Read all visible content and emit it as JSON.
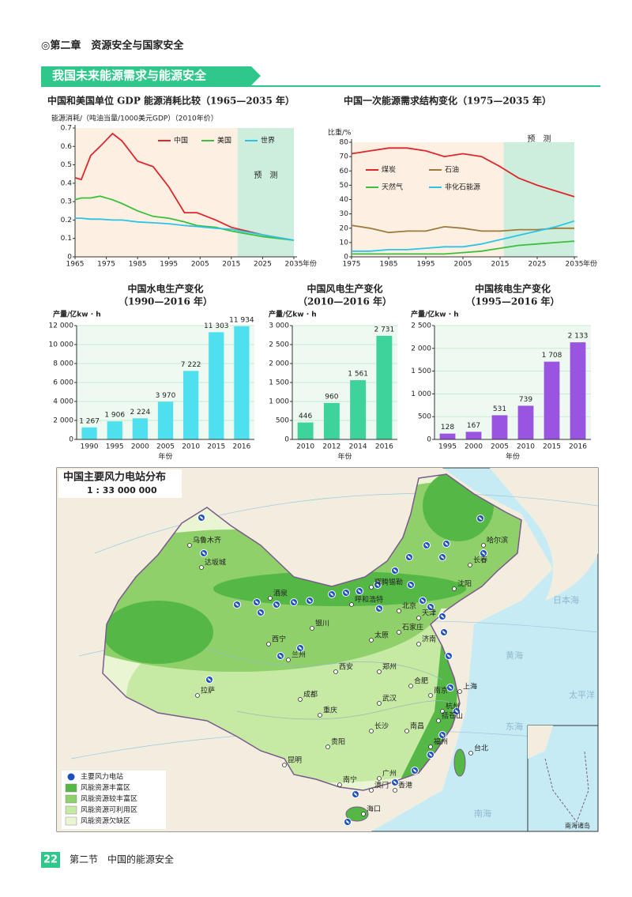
{
  "header": {
    "chapter": "◎第二章　资源安全与国家安全",
    "banner": "我国未来能源需求与能源安全"
  },
  "chart_data": [
    {
      "type": "line",
      "title": "中国和美国单位 GDP 能源消耗比较（1965—2035 年）",
      "ylabel": "能源消耗/（吨油当量/1000美元GDP）（2010年价）",
      "xlabel": "年份",
      "forecast_label": "预　测",
      "forecast_from": 2017,
      "x": [
        1965,
        1967,
        1970,
        1973,
        1977,
        1980,
        1985,
        1990,
        1995,
        2000,
        2004,
        2010,
        2015,
        2020,
        2025,
        2030,
        2035
      ],
      "series": [
        {
          "name": "中国",
          "color": "#e0262b",
          "values": [
            0.43,
            0.42,
            0.55,
            0.6,
            0.67,
            0.63,
            0.52,
            0.49,
            0.38,
            0.24,
            0.24,
            0.2,
            0.16,
            0.14,
            0.12,
            0.105,
            0.09
          ]
        },
        {
          "name": "美国",
          "color": "#3cbf3c",
          "values": [
            0.31,
            0.32,
            0.32,
            0.33,
            0.31,
            0.29,
            0.25,
            0.22,
            0.21,
            0.19,
            0.17,
            0.16,
            0.14,
            0.125,
            0.11,
            0.1,
            0.09
          ]
        },
        {
          "name": "世界",
          "color": "#2cc4e6",
          "values": [
            0.21,
            0.21,
            0.205,
            0.205,
            0.2,
            0.2,
            0.19,
            0.185,
            0.18,
            0.17,
            0.165,
            0.155,
            0.15,
            0.135,
            0.12,
            0.105,
            0.09
          ]
        }
      ],
      "xlim": [
        1965,
        2035
      ],
      "xticks": [
        1965,
        1975,
        1985,
        1995,
        2005,
        2015,
        2025,
        2035
      ],
      "ylim": [
        0,
        0.7
      ],
      "yticks": [
        0,
        0.1,
        0.2,
        0.3,
        0.4,
        0.5,
        0.6,
        0.7
      ]
    },
    {
      "type": "line",
      "title": "中国一次能源需求结构变化（1975—2035 年）",
      "ylabel": "比重/%",
      "xlabel": "年份",
      "forecast_label": "预　测",
      "forecast_from": 2016,
      "x": [
        1975,
        1980,
        1985,
        1990,
        1995,
        2000,
        2005,
        2010,
        2015,
        2020,
        2025,
        2030,
        2035
      ],
      "series": [
        {
          "name": "煤炭",
          "color": "#e0262b",
          "values": [
            72,
            74,
            76,
            76,
            74,
            70,
            72,
            70,
            63,
            55,
            50,
            46,
            42
          ]
        },
        {
          "name": "石油",
          "color": "#a07a3a",
          "values": [
            22,
            20,
            17,
            18,
            18,
            21,
            20,
            18,
            18,
            19,
            19,
            20,
            20
          ]
        },
        {
          "name": "天然气",
          "color": "#3cbf3c",
          "values": [
            2,
            2,
            2,
            2,
            2,
            2,
            3,
            4,
            6,
            8,
            9,
            10,
            11
          ]
        },
        {
          "name": "非化石能源",
          "color": "#2cc4e6",
          "values": [
            4,
            4,
            5,
            5,
            6,
            7,
            7,
            9,
            12,
            15,
            18,
            21,
            25
          ]
        }
      ],
      "xlim": [
        1975,
        2035
      ],
      "xticks": [
        1975,
        1985,
        1995,
        2005,
        2015,
        2025,
        2035
      ],
      "ylim": [
        0,
        80
      ],
      "yticks": [
        0,
        10,
        20,
        30,
        40,
        50,
        60,
        70,
        80
      ]
    },
    {
      "type": "bar",
      "title": "中国水电生产变化",
      "subtitle": "（1990—2016 年）",
      "ylabel": "产量/亿kw · h",
      "xlabel": "年份",
      "categories": [
        "1990",
        "1995",
        "2000",
        "2005",
        "2010",
        "2015",
        "2016"
      ],
      "values": [
        1267,
        1906,
        2224,
        3970,
        7222,
        11303,
        11934
      ],
      "value_labels": [
        "1 267",
        "1 906",
        "2 224",
        "3 970",
        "7 222",
        "11 303",
        "11 934"
      ],
      "color": "#4fe0f0",
      "ylim": [
        0,
        12000
      ],
      "yticks": [
        0,
        {
          "value": 2000,
          "label": "2 000"
        },
        {
          "value": 4000,
          "label": "4 000"
        },
        {
          "value": 6000,
          "label": "6 000"
        },
        {
          "value": 8000,
          "label": "8 000"
        },
        {
          "value": 10000,
          "label": "10 000"
        },
        {
          "value": 12000,
          "label": "12 000"
        }
      ],
      "grid": true
    },
    {
      "type": "bar",
      "title": "中国风电生产变化",
      "subtitle": "（2010—2016 年）",
      "ylabel": "产量/亿kw · h",
      "xlabel": "年份",
      "categories": [
        "2010",
        "2012",
        "2014",
        "2016"
      ],
      "values": [
        446,
        960,
        1561,
        2731
      ],
      "value_labels": [
        "446",
        "960",
        "1 561",
        "2 731"
      ],
      "color": "#3ed39a",
      "ylim": [
        0,
        3000
      ],
      "yticks": [
        0,
        500,
        {
          "value": 1000,
          "label": "1 000"
        },
        {
          "value": 1500,
          "label": "1 500"
        },
        {
          "value": 2000,
          "label": "2 000"
        },
        {
          "value": 2500,
          "label": "2 500"
        },
        {
          "value": 3000,
          "label": "3 000"
        }
      ],
      "grid": true
    },
    {
      "type": "bar",
      "title": "中国核电生产变化",
      "subtitle": "（1995—2016 年）",
      "ylabel": "产量/亿kw · h",
      "xlabel": "年份",
      "categories": [
        "1995",
        "2000",
        "2005",
        "2010",
        "2015",
        "2016"
      ],
      "values": [
        128,
        167,
        531,
        739,
        1708,
        2133
      ],
      "value_labels": [
        "128",
        "167",
        "531",
        "739",
        "1 708",
        "2 133"
      ],
      "color": "#9a55e0",
      "ylim": [
        0,
        2500
      ],
      "yticks": [
        0,
        500,
        {
          "value": 1000,
          "label": "1 000"
        },
        {
          "value": 1500,
          "label": "1 500"
        },
        {
          "value": 2000,
          "label": "2 000"
        },
        {
          "value": 2500,
          "label": "2 500"
        }
      ],
      "grid": true
    }
  ],
  "map": {
    "title": "中国主要风力电站分布",
    "scale": "1 : 33 000 000",
    "legend": [
      "主要风力电站",
      "风能资源丰富区",
      "风能资源较丰富区",
      "风能资源可利用区",
      "风能资源欠缺区"
    ],
    "cities": [
      "北京",
      "天津",
      "石家庄",
      "太原",
      "呼和浩特",
      "银川",
      "兰州",
      "西宁",
      "乌鲁木齐",
      "达坂城",
      "拉萨",
      "成都",
      "重庆",
      "贵阳",
      "昆明",
      "南宁",
      "广州",
      "澳门",
      "香港",
      "海口",
      "长沙",
      "南昌",
      "福州",
      "台北",
      "杭州",
      "上海",
      "南京",
      "合肥",
      "武汉",
      "郑州",
      "西安",
      "济南",
      "沈阳",
      "长春",
      "哈尔滨",
      "辉腾锡勒",
      "酒泉",
      "括苍山"
    ],
    "seas": [
      "日本海",
      "黄海",
      "东海",
      "太平洋",
      "南海"
    ],
    "inset": "南海诸岛"
  },
  "footer": {
    "page": "22",
    "section": "第二节　中国的能源安全"
  }
}
